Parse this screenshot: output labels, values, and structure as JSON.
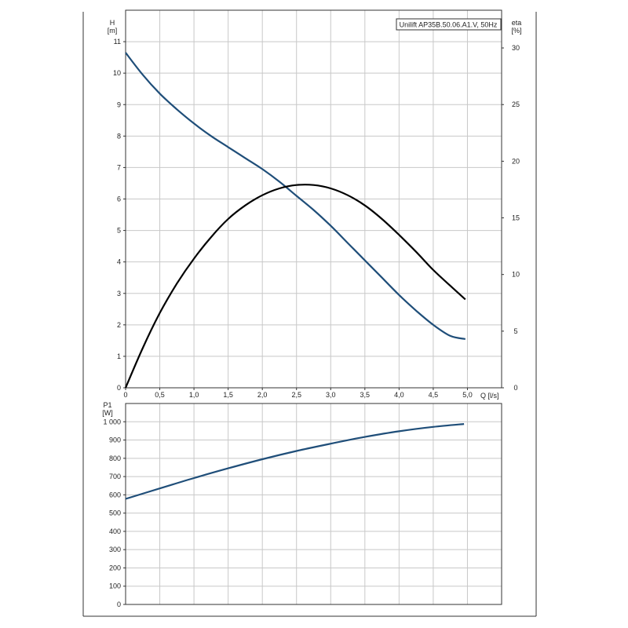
{
  "chart_data": [
    {
      "type": "line",
      "title": "Unilift AP35B.50.06.A1.V, 50Hz",
      "xlabel": "Q [l/s]",
      "ylabel": "H",
      "ylabel_unit": "[m]",
      "y2label": "eta",
      "y2label_unit": "[%]",
      "xlim": [
        0,
        5.5
      ],
      "ylim": [
        0,
        12
      ],
      "y2lim": [
        0,
        30
      ],
      "grid": true,
      "x_ticks": [
        "0",
        "0,5",
        "1,0",
        "1,5",
        "2,0",
        "2,5",
        "3,0",
        "3,5",
        "4,0",
        "4,5",
        "5,0"
      ],
      "y_ticks": [
        "0",
        "1",
        "2",
        "3",
        "4",
        "5",
        "6",
        "7",
        "8",
        "9",
        "10",
        "11"
      ],
      "y2_ticks": [
        "0",
        "5",
        "10",
        "15",
        "20",
        "25",
        "30"
      ],
      "series": [
        {
          "axis": "left",
          "color": "#1f4e79",
          "x": [
            0,
            0.25,
            0.5,
            0.75,
            1.0,
            1.25,
            1.5,
            1.75,
            2.0,
            2.25,
            2.5,
            2.75,
            3.0,
            3.25,
            3.5,
            3.75,
            4.0,
            4.25,
            4.5,
            4.75,
            4.97
          ],
          "values": [
            10.65,
            9.95,
            9.35,
            8.85,
            8.4,
            8.0,
            7.65,
            7.3,
            6.95,
            6.55,
            6.1,
            5.65,
            5.15,
            4.6,
            4.05,
            3.5,
            2.95,
            2.45,
            2.0,
            1.65,
            1.55
          ]
        },
        {
          "axis": "right",
          "color": "#000000",
          "x": [
            0,
            0.25,
            0.5,
            0.75,
            1.0,
            1.25,
            1.5,
            1.75,
            2.0,
            2.25,
            2.5,
            2.75,
            3.0,
            3.25,
            3.5,
            3.75,
            4.0,
            4.25,
            4.5,
            4.75,
            4.97
          ],
          "values": [
            0,
            3.5,
            6.6,
            9.2,
            11.4,
            13.3,
            14.9,
            16.1,
            17.0,
            17.6,
            17.9,
            17.9,
            17.6,
            17.0,
            16.1,
            14.9,
            13.5,
            12.0,
            10.4,
            9.0,
            7.8
          ]
        }
      ]
    },
    {
      "type": "line",
      "xlabel": "",
      "ylabel": "P1",
      "ylabel_unit": "[W]",
      "xlim": [
        0,
        5.5
      ],
      "ylim": [
        0,
        1100
      ],
      "grid": true,
      "y_ticks": [
        "0",
        "100",
        "200",
        "300",
        "400",
        "500",
        "600",
        "700",
        "800",
        "900",
        "1 000"
      ],
      "series": [
        {
          "color": "#1f4e79",
          "x": [
            0,
            0.5,
            1.0,
            1.5,
            2.0,
            2.5,
            3.0,
            3.5,
            4.0,
            4.5,
            4.95
          ],
          "values": [
            578,
            635,
            692,
            745,
            795,
            840,
            880,
            917,
            948,
            972,
            988
          ]
        }
      ]
    }
  ]
}
